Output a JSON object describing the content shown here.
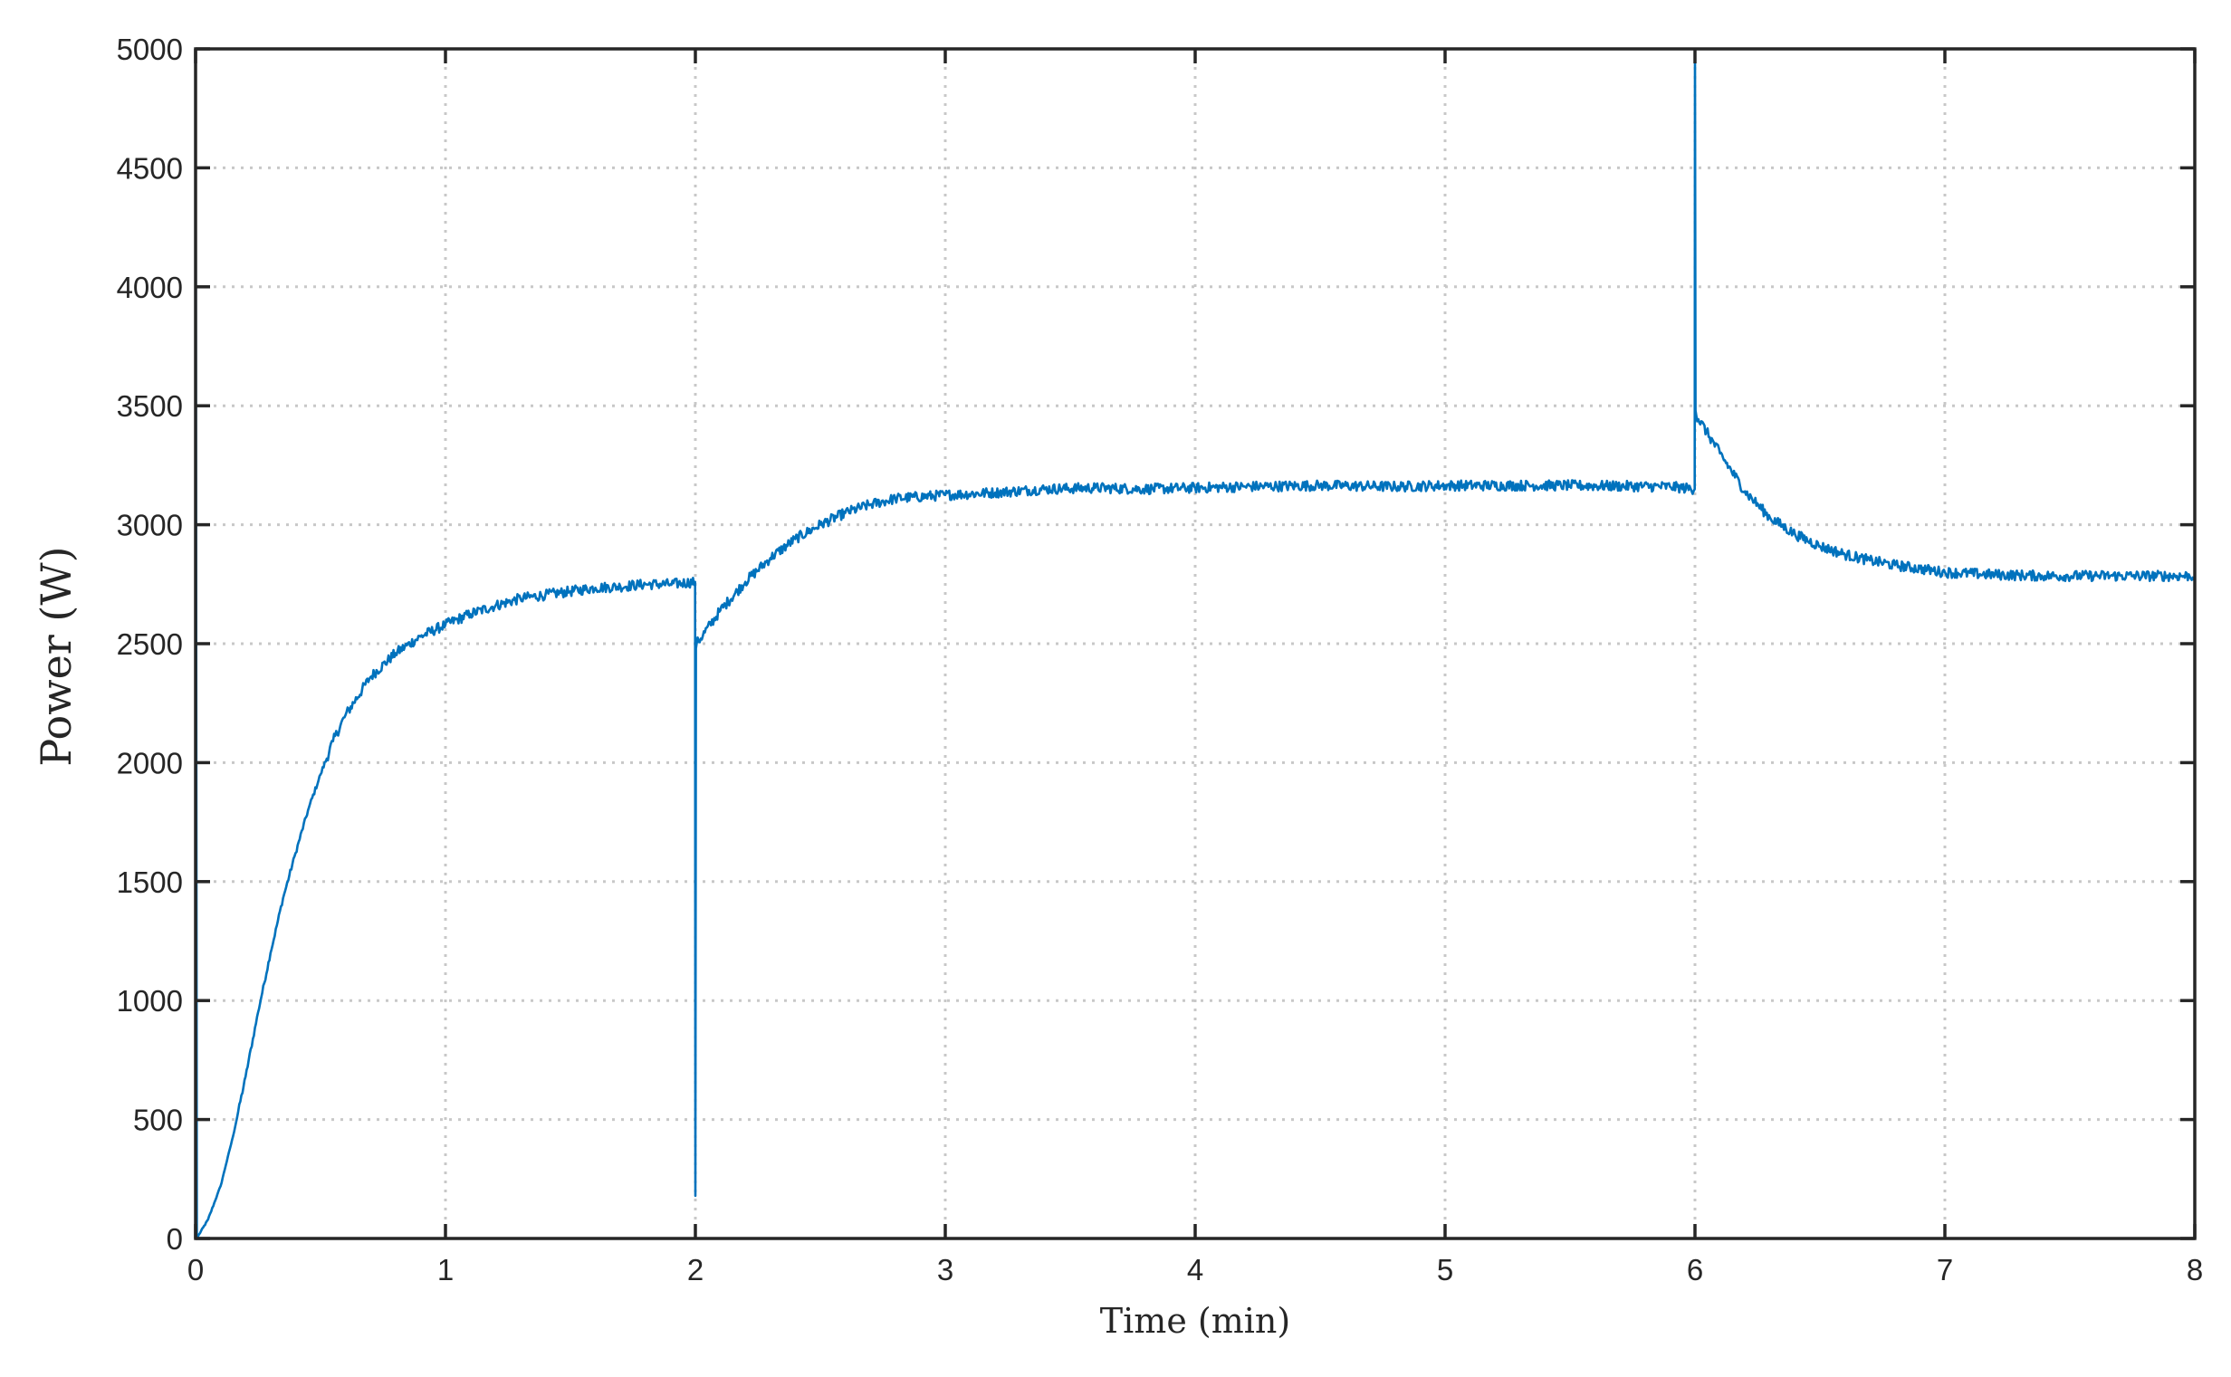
{
  "chart_data": {
    "type": "line",
    "title": "",
    "xlabel": "Time (min)",
    "ylabel": "Power (W)",
    "xlim": [
      0,
      8
    ],
    "ylim": [
      0,
      5000
    ],
    "xticks": [
      0,
      1,
      2,
      3,
      4,
      5,
      6,
      7,
      8
    ],
    "yticks": [
      0,
      500,
      1000,
      1500,
      2000,
      2500,
      3000,
      3500,
      4000,
      4500,
      5000
    ],
    "grid": true,
    "legend": "none",
    "color": "#0072BD",
    "series": [
      {
        "x": [
          0,
          0.005,
          0.01,
          0.05,
          0.1,
          0.15,
          0.2,
          0.25,
          0.3,
          0.35,
          0.4,
          0.45,
          0.5,
          0.55,
          0.6,
          0.7,
          0.8,
          0.9,
          1.0,
          1.1,
          1.2,
          1.3,
          1.4,
          1.5,
          1.6,
          1.7,
          1.8,
          1.9,
          1.999,
          2.0,
          2.002,
          2.005,
          2.1,
          2.2,
          2.3,
          2.4,
          2.5,
          2.6,
          2.7,
          2.8,
          3.0,
          3.2,
          3.4,
          3.6,
          3.8,
          4.0,
          4.2,
          4.5,
          4.8,
          5.0,
          5.5,
          5.9,
          5.999,
          6.0,
          6.002,
          6.005,
          6.1,
          6.2,
          6.3,
          6.4,
          6.5,
          6.6,
          6.7,
          6.8,
          6.9,
          7.0,
          7.2,
          7.4,
          7.6,
          7.8,
          8.0
        ],
        "y": [
          5000,
          0,
          10,
          80,
          220,
          430,
          680,
          950,
          1200,
          1430,
          1620,
          1800,
          1950,
          2090,
          2200,
          2360,
          2460,
          2530,
          2580,
          2625,
          2660,
          2690,
          2705,
          2720,
          2735,
          2740,
          2750,
          2750,
          2760,
          180,
          2480,
          2500,
          2640,
          2760,
          2860,
          2940,
          3000,
          3050,
          3085,
          3110,
          3125,
          3135,
          3150,
          3155,
          3150,
          3155,
          3160,
          3165,
          3160,
          3165,
          3165,
          3160,
          3150,
          5000,
          3480,
          3460,
          3300,
          3140,
          3030,
          2960,
          2910,
          2875,
          2850,
          2830,
          2815,
          2800,
          2790,
          2785,
          2785,
          2785,
          2785
        ]
      }
    ]
  }
}
